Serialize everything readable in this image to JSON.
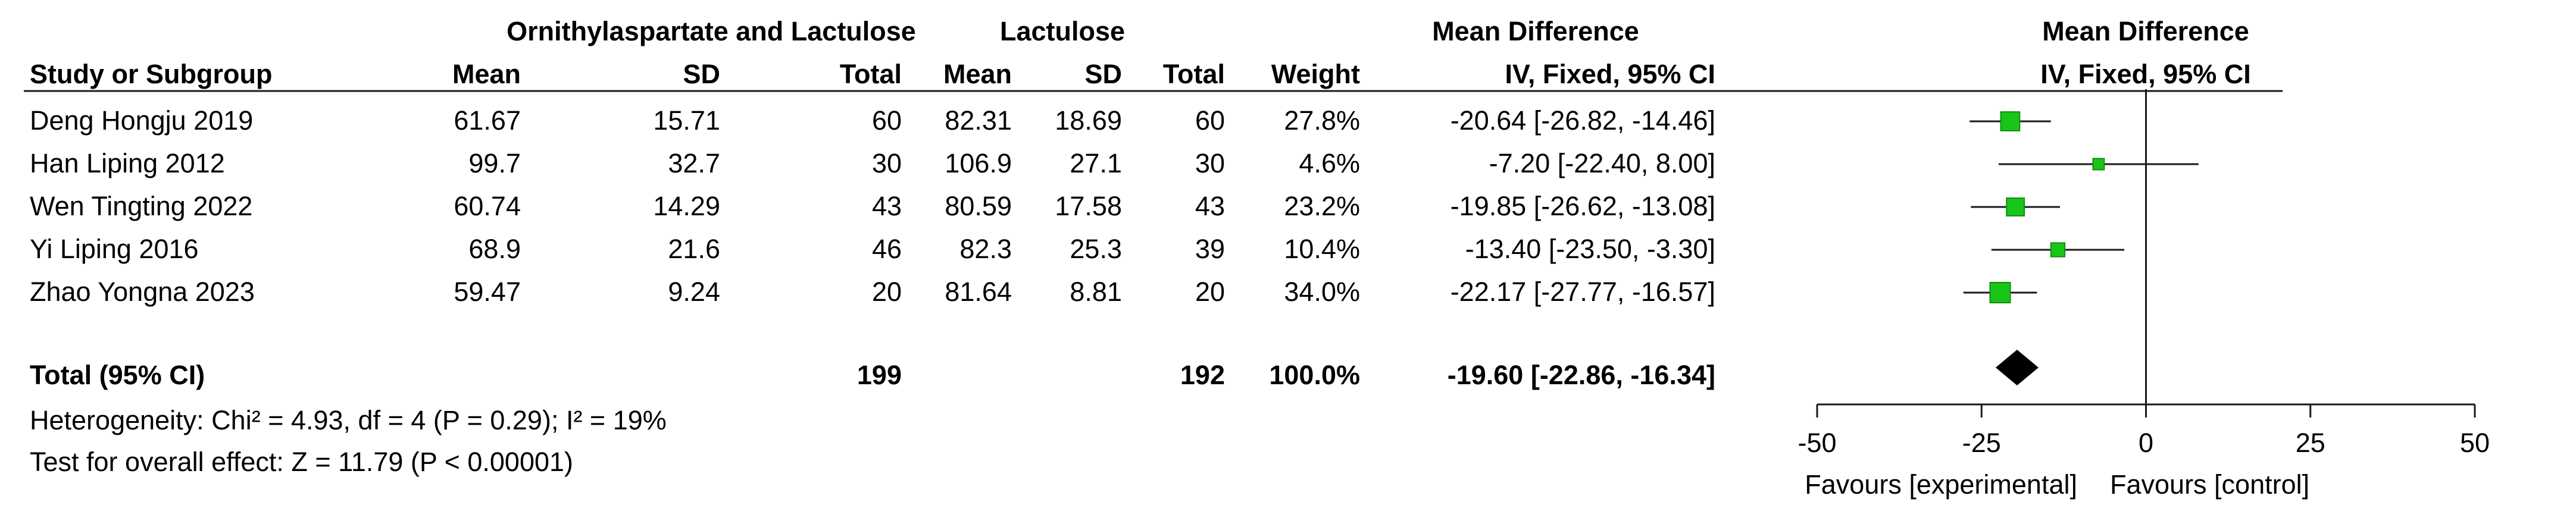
{
  "headers": {
    "group1": "Ornithylaspartate and Lactulose",
    "group2": "Lactulose",
    "md_title": "Mean Difference",
    "md_method": "IV, Fixed, 95% CI",
    "plot_title": "Mean Difference",
    "plot_method": "IV, Fixed, 95% CI",
    "study": "Study or Subgroup",
    "mean1": "Mean",
    "sd1": "SD",
    "total1": "Total",
    "mean2": "Mean",
    "sd2": "SD",
    "total2": "Total",
    "weight": "Weight"
  },
  "studies": [
    {
      "name": "Deng Hongju 2019",
      "mean1": "61.67",
      "sd1": "15.71",
      "n1": "60",
      "mean2": "82.31",
      "sd2": "18.69",
      "n2": "60",
      "weight": "27.8%",
      "ci_text": "-20.64 [-26.82, -14.46]"
    },
    {
      "name": "Han Liping 2012",
      "mean1": "99.7",
      "sd1": "32.7",
      "n1": "30",
      "mean2": "106.9",
      "sd2": "27.1",
      "n2": "30",
      "weight": "4.6%",
      "ci_text": "-7.20 [-22.40, 8.00]"
    },
    {
      "name": "Wen Tingting 2022",
      "mean1": "60.74",
      "sd1": "14.29",
      "n1": "43",
      "mean2": "80.59",
      "sd2": "17.58",
      "n2": "43",
      "weight": "23.2%",
      "ci_text": "-19.85 [-26.62, -13.08]"
    },
    {
      "name": "Yi Liping 2016",
      "mean1": "68.9",
      "sd1": "21.6",
      "n1": "46",
      "mean2": "82.3",
      "sd2": "25.3",
      "n2": "39",
      "weight": "10.4%",
      "ci_text": "-13.40 [-23.50, -3.30]"
    },
    {
      "name": "Zhao Yongna 2023",
      "mean1": "59.47",
      "sd1": "9.24",
      "n1": "20",
      "mean2": "81.64",
      "sd2": "8.81",
      "n2": "20",
      "weight": "34.0%",
      "ci_text": "-22.17 [-27.77, -16.57]"
    }
  ],
  "total": {
    "label": "Total (95% CI)",
    "n1": "199",
    "n2": "192",
    "weight": "100.0%",
    "ci_text": "-19.60 [-22.86, -16.34]"
  },
  "footer": {
    "heterogeneity": "Heterogeneity: Chi² = 4.93, df = 4 (P = 0.29); I² = 19%",
    "overall": "Test for overall effect: Z = 11.79 (P < 0.00001)"
  },
  "axis": {
    "favours_left": "Favours [experimental]",
    "favours_right": "Favours [control]"
  },
  "colors": {
    "study_marker": "#19c519",
    "study_marker_stroke": "#0d8f0d",
    "diamond": "#000000",
    "text": "#141414",
    "lines": "#1a1a1a"
  },
  "chart_data": {
    "type": "forest",
    "title": "Mean Difference",
    "subtitle": "IV, Fixed, 95% CI",
    "xlim": [
      -50,
      50
    ],
    "ticks": [
      -50,
      -25,
      0,
      25,
      50
    ],
    "reference_line": 0,
    "studies": [
      {
        "name": "Deng Hongju 2019",
        "md": -20.64,
        "ci": [
          -26.82,
          -14.46
        ],
        "weight": 27.8
      },
      {
        "name": "Han Liping 2012",
        "md": -7.2,
        "ci": [
          -22.4,
          8.0
        ],
        "weight": 4.6
      },
      {
        "name": "Wen Tingting 2022",
        "md": -19.85,
        "ci": [
          -26.62,
          -13.08
        ],
        "weight": 23.2
      },
      {
        "name": "Yi Liping 2016",
        "md": -13.4,
        "ci": [
          -23.5,
          -3.3
        ],
        "weight": 10.4
      },
      {
        "name": "Zhao Yongna 2023",
        "md": -22.17,
        "ci": [
          -27.77,
          -16.57
        ],
        "weight": 34.0
      }
    ],
    "pooled": {
      "md": -19.6,
      "ci": [
        -22.86,
        -16.34
      ],
      "weight": 100.0
    }
  }
}
